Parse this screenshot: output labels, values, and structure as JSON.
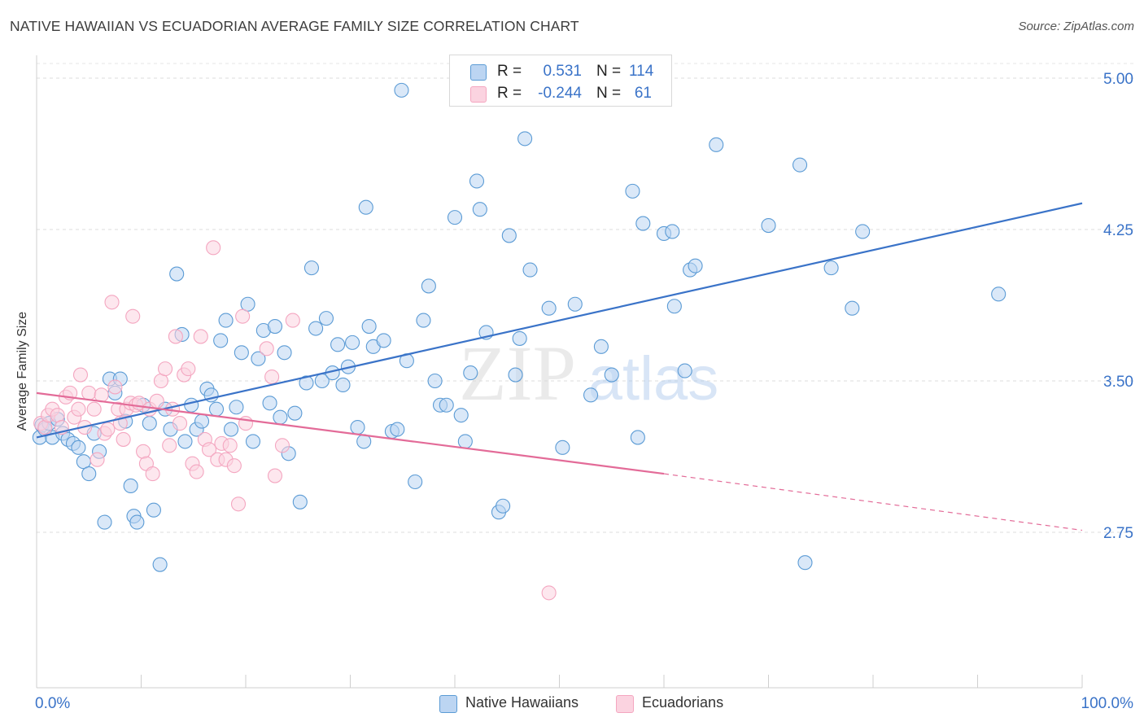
{
  "title": "NATIVE HAWAIIAN VS ECUADORIAN AVERAGE FAMILY SIZE CORRELATION CHART",
  "source": "Source: ZipAtlas.com",
  "watermark": {
    "zip": "ZIP",
    "atlas": "atlas"
  },
  "stats": {
    "r_label": "R =",
    "n_label": "N =",
    "rows": [
      {
        "r": "0.531",
        "n": "114",
        "color": "#5b9bd5"
      },
      {
        "r": "-0.244",
        "n": "61",
        "color": "#f4a6c0"
      }
    ]
  },
  "legend": [
    {
      "label": "Native Hawaiians",
      "color": "#5b9bd5"
    },
    {
      "label": "Ecuadorians",
      "color": "#f4a6c0"
    }
  ],
  "chart_data": {
    "type": "scatter",
    "title": "NATIVE HAWAIIAN VS ECUADORIAN AVERAGE FAMILY SIZE CORRELATION CHART",
    "ylabel": "Average Family Size",
    "xlabel": "",
    "x_tick_labels": [
      "0.0%",
      "100.0%"
    ],
    "y_tick_labels": [
      "2.75",
      "3.50",
      "4.25",
      "5.00"
    ],
    "y_ticks": [
      2.75,
      3.5,
      4.25,
      5.0
    ],
    "xlim": [
      0,
      100
    ],
    "ylim": [
      2.0,
      5.1
    ],
    "grid": "horizontal dashed",
    "legend_position": "bottom-center",
    "series": [
      {
        "name": "Native Hawaiians",
        "color": "#5b9bd5",
        "trend": {
          "x": [
            0,
            100
          ],
          "y": [
            3.22,
            4.38
          ],
          "dashed_from": null
        },
        "points": [
          [
            0.3,
            3.22
          ],
          [
            0.5,
            3.28
          ],
          [
            0.8,
            3.26
          ],
          [
            1.2,
            3.29
          ],
          [
            1.5,
            3.22
          ],
          [
            2.0,
            3.31
          ],
          [
            2.5,
            3.24
          ],
          [
            3.0,
            3.21
          ],
          [
            3.5,
            3.19
          ],
          [
            4.0,
            3.17
          ],
          [
            4.5,
            3.1
          ],
          [
            5.0,
            3.04
          ],
          [
            5.5,
            3.24
          ],
          [
            6.0,
            3.15
          ],
          [
            6.5,
            2.8
          ],
          [
            7.0,
            3.51
          ],
          [
            7.5,
            3.44
          ],
          [
            8.0,
            3.51
          ],
          [
            8.5,
            3.3
          ],
          [
            9.0,
            2.98
          ],
          [
            9.3,
            2.83
          ],
          [
            9.6,
            2.8
          ],
          [
            10.2,
            3.38
          ],
          [
            10.8,
            3.29
          ],
          [
            11.2,
            2.86
          ],
          [
            11.8,
            2.59
          ],
          [
            12.3,
            3.36
          ],
          [
            12.8,
            3.26
          ],
          [
            13.4,
            4.03
          ],
          [
            13.9,
            3.73
          ],
          [
            14.2,
            3.2
          ],
          [
            14.8,
            3.38
          ],
          [
            15.3,
            3.26
          ],
          [
            15.8,
            3.3
          ],
          [
            16.3,
            3.46
          ],
          [
            16.7,
            3.43
          ],
          [
            17.2,
            3.36
          ],
          [
            17.6,
            3.7
          ],
          [
            18.1,
            3.8
          ],
          [
            18.6,
            3.26
          ],
          [
            19.1,
            3.37
          ],
          [
            19.6,
            3.64
          ],
          [
            20.2,
            3.88
          ],
          [
            20.7,
            3.2
          ],
          [
            21.2,
            3.61
          ],
          [
            21.7,
            3.75
          ],
          [
            22.3,
            3.39
          ],
          [
            22.8,
            3.77
          ],
          [
            23.3,
            3.32
          ],
          [
            23.7,
            3.64
          ],
          [
            24.1,
            3.14
          ],
          [
            24.7,
            3.34
          ],
          [
            25.2,
            2.9
          ],
          [
            25.8,
            3.49
          ],
          [
            26.3,
            4.06
          ],
          [
            26.7,
            3.76
          ],
          [
            27.3,
            3.5
          ],
          [
            27.7,
            3.81
          ],
          [
            28.3,
            3.54
          ],
          [
            28.8,
            3.68
          ],
          [
            29.3,
            3.48
          ],
          [
            29.8,
            3.57
          ],
          [
            30.2,
            3.69
          ],
          [
            30.7,
            3.27
          ],
          [
            31.3,
            3.2
          ],
          [
            31.8,
            3.77
          ],
          [
            32.2,
            3.67
          ],
          [
            31.5,
            4.36
          ],
          [
            33.2,
            3.7
          ],
          [
            34.0,
            3.25
          ],
          [
            34.5,
            3.26
          ],
          [
            34.9,
            4.94
          ],
          [
            35.4,
            3.6
          ],
          [
            36.2,
            3.0
          ],
          [
            37.0,
            3.8
          ],
          [
            37.5,
            3.97
          ],
          [
            38.1,
            3.5
          ],
          [
            38.6,
            3.38
          ],
          [
            39.2,
            3.38
          ],
          [
            40.0,
            4.31
          ],
          [
            40.6,
            3.33
          ],
          [
            41.0,
            3.2
          ],
          [
            41.5,
            3.54
          ],
          [
            42.1,
            4.49
          ],
          [
            42.4,
            4.35
          ],
          [
            43.0,
            3.74
          ],
          [
            44.2,
            2.85
          ],
          [
            44.6,
            2.88
          ],
          [
            45.2,
            4.22
          ],
          [
            45.8,
            3.53
          ],
          [
            46.2,
            3.71
          ],
          [
            46.7,
            4.7
          ],
          [
            47.2,
            4.05
          ],
          [
            49.0,
            3.86
          ],
          [
            50.3,
            3.17
          ],
          [
            51.5,
            3.88
          ],
          [
            53.0,
            3.43
          ],
          [
            54.0,
            3.67
          ],
          [
            55.0,
            3.53
          ],
          [
            57.0,
            4.44
          ],
          [
            57.5,
            3.22
          ],
          [
            58.0,
            4.28
          ],
          [
            60.0,
            4.23
          ],
          [
            60.8,
            4.24
          ],
          [
            61.0,
            3.87
          ],
          [
            62.0,
            3.55
          ],
          [
            62.5,
            4.05
          ],
          [
            63.0,
            4.07
          ],
          [
            65.0,
            4.67
          ],
          [
            70.0,
            4.27
          ],
          [
            73.0,
            4.57
          ],
          [
            73.5,
            2.6
          ],
          [
            76.0,
            4.06
          ],
          [
            78.0,
            3.86
          ],
          [
            79.0,
            4.24
          ],
          [
            92.0,
            3.93
          ]
        ]
      },
      {
        "name": "Ecuadorians",
        "color": "#f4a6c0",
        "trend": {
          "x": [
            0,
            60,
            100
          ],
          "y": [
            3.44,
            3.04,
            2.76
          ],
          "dashed_from": 60
        },
        "points": [
          [
            0.4,
            3.29
          ],
          [
            0.8,
            3.27
          ],
          [
            1.1,
            3.33
          ],
          [
            1.5,
            3.36
          ],
          [
            2.0,
            3.33
          ],
          [
            2.4,
            3.27
          ],
          [
            2.8,
            3.42
          ],
          [
            3.2,
            3.44
          ],
          [
            3.6,
            3.32
          ],
          [
            4.0,
            3.36
          ],
          [
            4.2,
            3.53
          ],
          [
            4.6,
            3.27
          ],
          [
            5.0,
            3.44
          ],
          [
            5.5,
            3.36
          ],
          [
            5.8,
            3.11
          ],
          [
            6.2,
            3.43
          ],
          [
            6.5,
            3.24
          ],
          [
            6.8,
            3.26
          ],
          [
            7.2,
            3.89
          ],
          [
            7.5,
            3.47
          ],
          [
            7.8,
            3.36
          ],
          [
            8.0,
            3.29
          ],
          [
            8.3,
            3.21
          ],
          [
            8.6,
            3.36
          ],
          [
            9.0,
            3.39
          ],
          [
            9.2,
            3.82
          ],
          [
            9.5,
            3.38
          ],
          [
            9.8,
            3.39
          ],
          [
            10.2,
            3.15
          ],
          [
            10.5,
            3.09
          ],
          [
            10.8,
            3.36
          ],
          [
            11.1,
            3.04
          ],
          [
            11.5,
            3.4
          ],
          [
            11.9,
            3.5
          ],
          [
            12.3,
            3.56
          ],
          [
            12.7,
            3.18
          ],
          [
            13.0,
            3.36
          ],
          [
            13.3,
            3.72
          ],
          [
            13.7,
            3.29
          ],
          [
            14.1,
            3.53
          ],
          [
            14.5,
            3.56
          ],
          [
            14.9,
            3.09
          ],
          [
            15.3,
            3.05
          ],
          [
            15.7,
            3.72
          ],
          [
            16.1,
            3.21
          ],
          [
            16.5,
            3.16
          ],
          [
            16.9,
            4.16
          ],
          [
            17.3,
            3.11
          ],
          [
            17.7,
            3.19
          ],
          [
            18.1,
            3.11
          ],
          [
            18.5,
            3.18
          ],
          [
            18.9,
            3.08
          ],
          [
            19.3,
            2.89
          ],
          [
            19.7,
            3.82
          ],
          [
            20.0,
            3.29
          ],
          [
            22.0,
            3.66
          ],
          [
            22.5,
            3.52
          ],
          [
            22.8,
            3.03
          ],
          [
            23.5,
            3.18
          ],
          [
            24.5,
            3.8
          ],
          [
            49.0,
            2.45
          ]
        ]
      }
    ]
  }
}
